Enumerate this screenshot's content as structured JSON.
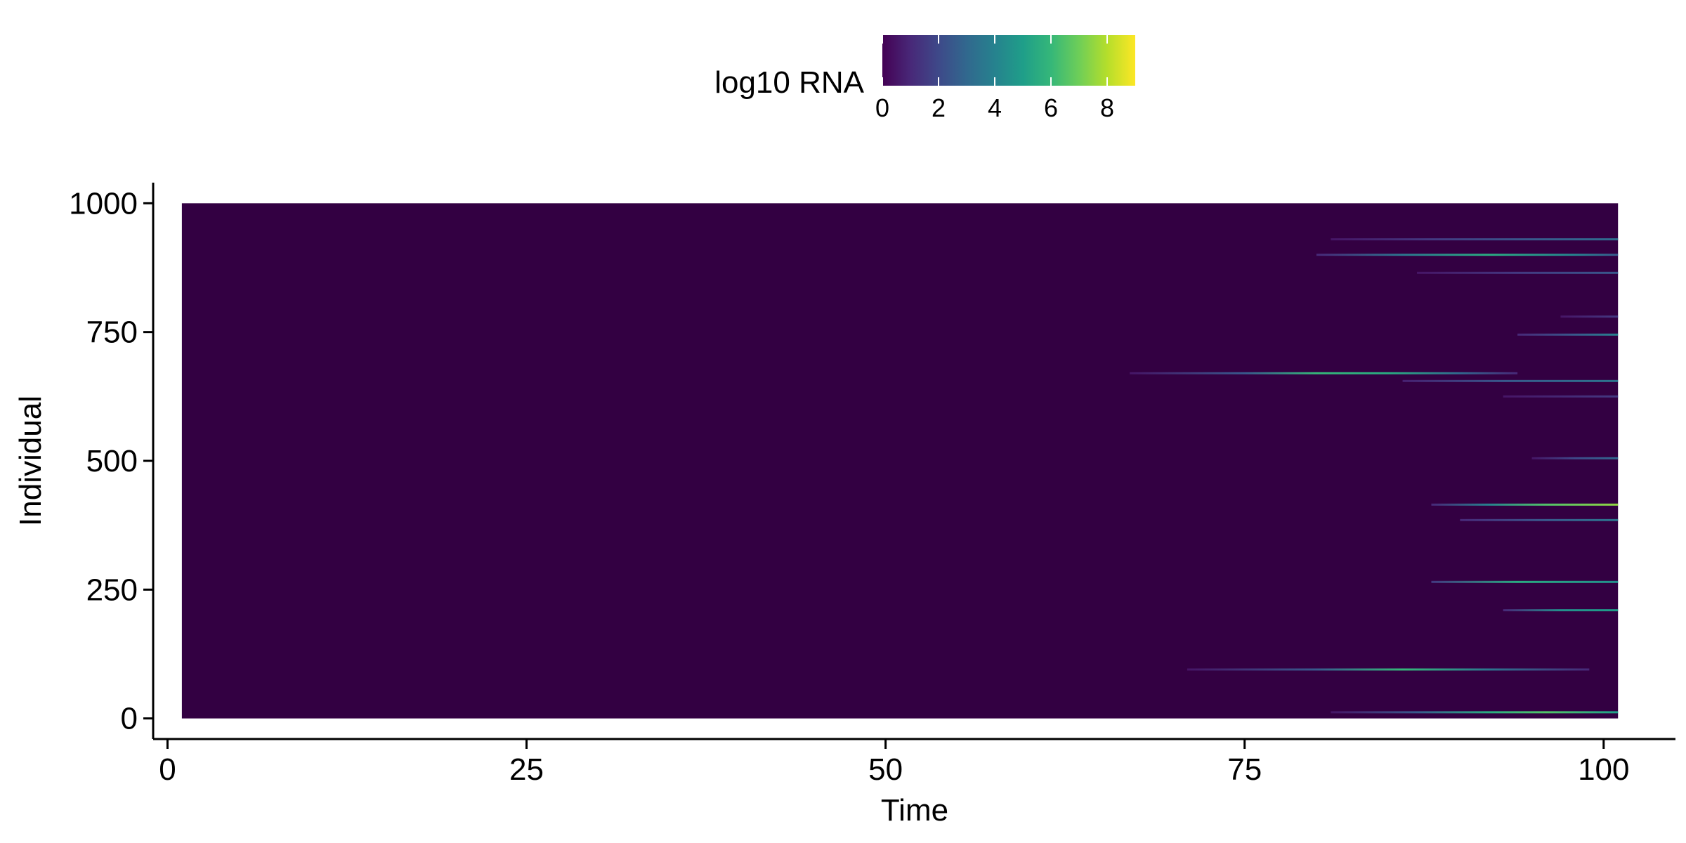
{
  "chart_data": {
    "type": "heatmap",
    "title": "",
    "xlabel": "Time",
    "ylabel": "Individual",
    "xlim": [
      -1,
      105
    ],
    "ylim": [
      -40,
      1040
    ],
    "data_extent": {
      "x": [
        1,
        101
      ],
      "y": [
        0,
        1000
      ]
    },
    "x_ticks": [
      0,
      25,
      50,
      75,
      100
    ],
    "x_tick_labels": [
      "0",
      "25",
      "50",
      "75",
      "100"
    ],
    "y_ticks": [
      0,
      250,
      500,
      750,
      1000
    ],
    "y_tick_labels": [
      "0",
      "250",
      "500",
      "750",
      "1000"
    ],
    "grid": false,
    "legend": {
      "title": "log10 RNA",
      "placement": "top",
      "range": [
        0,
        9
      ],
      "ticks": [
        0,
        2,
        4,
        6,
        8
      ],
      "tick_labels": [
        "0",
        "2",
        "4",
        "6",
        "8"
      ],
      "colormap": "viridis"
    },
    "background_value": 0,
    "colors": {
      "viridis": [
        "#440154",
        "#482878",
        "#3e4989",
        "#31688e",
        "#26828e",
        "#1f9e89",
        "#35b779",
        "#6ece58",
        "#b5de2b",
        "#fde725"
      ]
    },
    "series": [
      {
        "individual": 930,
        "x": [
          81,
          88,
          95,
          101
        ],
        "values": [
          0.5,
          1.5,
          2.5,
          3.2
        ]
      },
      {
        "individual": 900,
        "x": [
          80,
          86,
          92,
          98,
          101
        ],
        "values": [
          1.0,
          3.5,
          5.5,
          4.0,
          2.5
        ]
      },
      {
        "individual": 865,
        "x": [
          87,
          94,
          101
        ],
        "values": [
          0.5,
          1.5,
          2.5
        ]
      },
      {
        "individual": 780,
        "x": [
          97,
          101
        ],
        "values": [
          0.5,
          1.5
        ]
      },
      {
        "individual": 745,
        "x": [
          94,
          98,
          101
        ],
        "values": [
          1.0,
          2.5,
          4.0
        ]
      },
      {
        "individual": 670,
        "x": [
          67,
          75,
          80,
          85,
          90,
          94
        ],
        "values": [
          0.5,
          2.5,
          6.0,
          5.5,
          3.0,
          1.0
        ]
      },
      {
        "individual": 655,
        "x": [
          86,
          93,
          101
        ],
        "values": [
          0.8,
          2.5,
          3.5
        ]
      },
      {
        "individual": 625,
        "x": [
          93,
          101
        ],
        "values": [
          0.5,
          1.5
        ]
      },
      {
        "individual": 505,
        "x": [
          95,
          98,
          101
        ],
        "values": [
          0.5,
          2.0,
          3.0
        ]
      },
      {
        "individual": 415,
        "x": [
          88,
          92,
          96,
          101
        ],
        "values": [
          1.0,
          4.0,
          6.5,
          7.5
        ]
      },
      {
        "individual": 385,
        "x": [
          90,
          96,
          101
        ],
        "values": [
          1.0,
          2.5,
          3.5
        ]
      },
      {
        "individual": 265,
        "x": [
          88,
          94,
          101
        ],
        "values": [
          1.5,
          5.5,
          4.5
        ]
      },
      {
        "individual": 210,
        "x": [
          93,
          97,
          101
        ],
        "values": [
          1.0,
          4.5,
          5.0
        ]
      },
      {
        "individual": 95,
        "x": [
          71,
          80,
          86,
          92,
          99
        ],
        "values": [
          0.5,
          2.5,
          6.0,
          3.5,
          1.0
        ]
      },
      {
        "individual": 12,
        "x": [
          81,
          87,
          92,
          96,
          101
        ],
        "values": [
          0.5,
          2.5,
          5.5,
          6.5,
          5.0
        ]
      }
    ]
  }
}
